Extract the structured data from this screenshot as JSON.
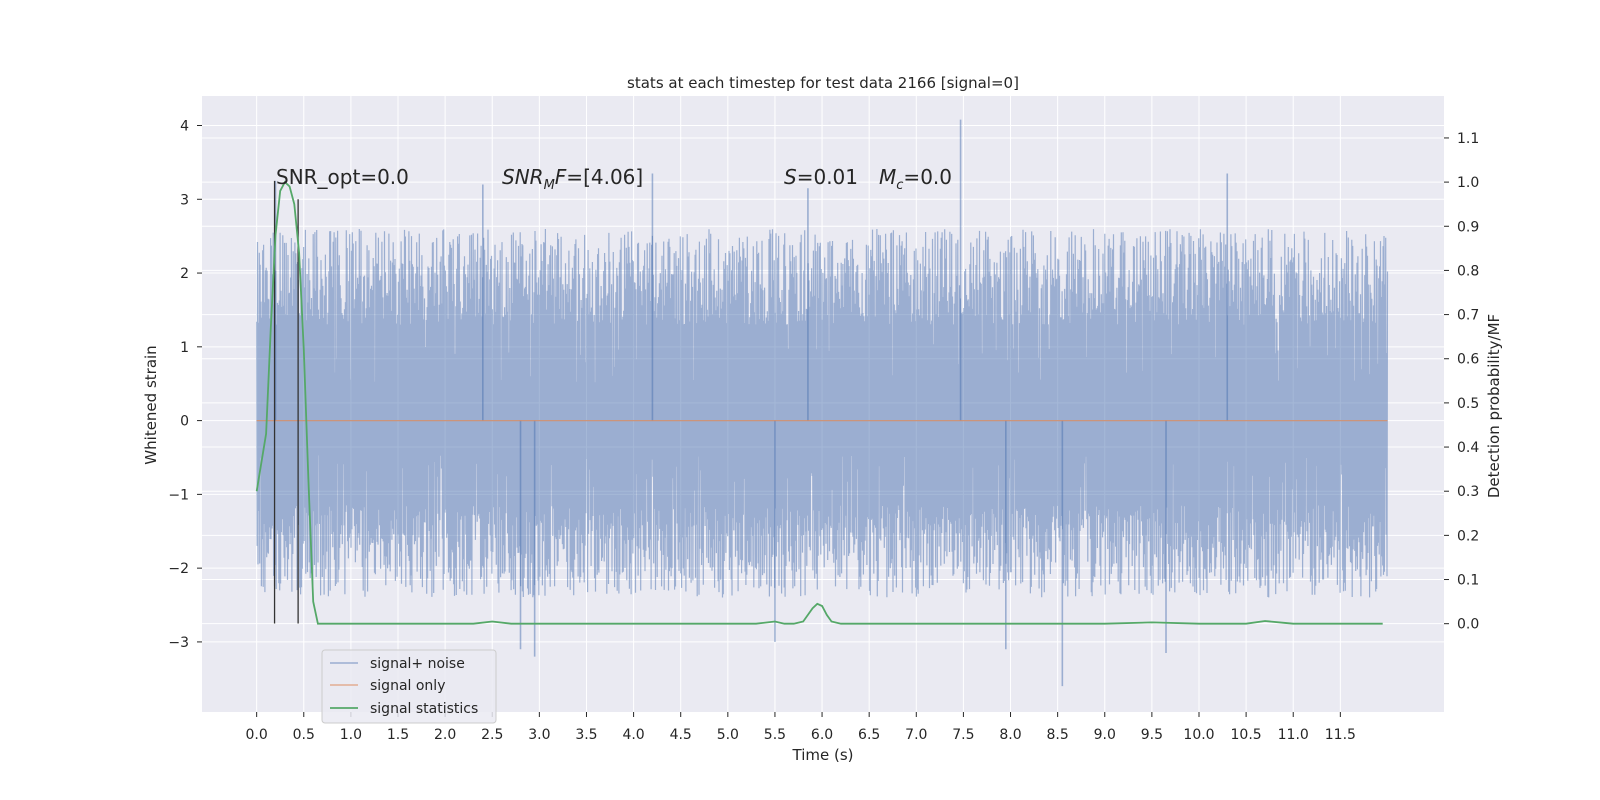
{
  "chart_data": {
    "type": "line",
    "title": "stats at each timestep for test data 2166 [signal=0]",
    "xlabel": "Time (s)",
    "ylabel": "Whitened strain",
    "ylabel_right": "Detection probability/MF",
    "xlim": [
      -0.58,
      12.6
    ],
    "ylim": [
      -3.95,
      4.4
    ],
    "ylim_right": [
      -0.2,
      1.195
    ],
    "x_ticks": [
      0.0,
      0.5,
      1.0,
      1.5,
      2.0,
      2.5,
      3.0,
      3.5,
      4.0,
      4.5,
      5.0,
      5.5,
      6.0,
      6.5,
      7.0,
      7.5,
      8.0,
      8.5,
      9.0,
      9.5,
      10.0,
      10.5,
      11.0,
      11.5
    ],
    "x_tick_labels": [
      "0.0",
      "0.5",
      "1.0",
      "1.5",
      "2.0",
      "2.5",
      "3.0",
      "3.5",
      "4.0",
      "4.5",
      "5.0",
      "5.5",
      "6.0",
      "6.5",
      "7.0",
      "7.5",
      "8.0",
      "8.5",
      "9.0",
      "9.5",
      "10.0",
      "10.5",
      "11.0",
      "11.5"
    ],
    "y_ticks": [
      -3,
      -2,
      -1,
      0,
      1,
      2,
      3,
      4
    ],
    "y_tick_labels": [
      "−3",
      "−2",
      "−1",
      "0",
      "1",
      "2",
      "3",
      "4"
    ],
    "y_ticks_right": [
      0.0,
      0.1,
      0.2,
      0.3,
      0.4,
      0.5,
      0.6,
      0.7,
      0.8,
      0.9,
      1.0,
      1.1
    ],
    "y_tick_labels_right": [
      "0.0",
      "0.1",
      "0.2",
      "0.3",
      "0.4",
      "0.5",
      "0.6",
      "0.7",
      "0.8",
      "0.9",
      "1.0",
      "1.1"
    ],
    "grid": true,
    "legend_position": "lower-left",
    "annotations": {
      "snr_opt": "SNR_opt=0.0",
      "snr_mf": "[4.06]",
      "s_value": "0.01",
      "mc_value": "0.0"
    },
    "series": [
      {
        "name": "signal+ noise",
        "color": "#4C72B0",
        "axis": "left",
        "x_range": [
          0.0,
          12.0
        ],
        "approx_envelope": [
          -2.4,
          2.6
        ],
        "peaks": [
          {
            "x": 0.2,
            "y": 3.25
          },
          {
            "x": 2.4,
            "y": 3.2
          },
          {
            "x": 4.2,
            "y": 3.35
          },
          {
            "x": 5.85,
            "y": 3.15
          },
          {
            "x": 7.47,
            "y": 4.08
          },
          {
            "x": 10.3,
            "y": 3.35
          },
          {
            "x": 2.8,
            "y": -3.1
          },
          {
            "x": 2.95,
            "y": -3.2
          },
          {
            "x": 5.5,
            "y": -3.0
          },
          {
            "x": 7.95,
            "y": -3.1
          },
          {
            "x": 8.55,
            "y": -3.6
          },
          {
            "x": 9.65,
            "y": -3.15
          }
        ]
      },
      {
        "name": "signal only",
        "color": "#DD8452",
        "axis": "left",
        "x": [
          0.0,
          12.0
        ],
        "y": [
          0.0,
          0.0
        ]
      },
      {
        "name": "signal statistics",
        "color": "#55A868",
        "axis": "right",
        "x": [
          0.0,
          0.1,
          0.15,
          0.2,
          0.25,
          0.3,
          0.35,
          0.4,
          0.45,
          0.5,
          0.55,
          0.6,
          0.65,
          0.7,
          0.8,
          1.0,
          2.0,
          2.3,
          2.5,
          2.7,
          3.0,
          4.0,
          5.0,
          5.3,
          5.5,
          5.6,
          5.7,
          5.8,
          5.9,
          5.95,
          6.0,
          6.05,
          6.1,
          6.2,
          6.4,
          7.0,
          8.0,
          9.0,
          9.5,
          10.0,
          10.5,
          10.7,
          10.9,
          11.0,
          11.5,
          11.95
        ],
        "y": [
          0.3,
          0.43,
          0.67,
          0.88,
          0.98,
          1.0,
          0.99,
          0.95,
          0.84,
          0.62,
          0.32,
          0.05,
          0.0,
          0.0,
          0.0,
          0.0,
          0.0,
          0.0,
          0.005,
          0.0,
          0.0,
          0.0,
          0.0,
          0.0,
          0.005,
          0.0,
          0.0,
          0.005,
          0.035,
          0.045,
          0.04,
          0.02,
          0.005,
          0.0,
          0.0,
          0.0,
          0.0,
          0.0,
          0.003,
          0.0,
          0.0,
          0.006,
          0.002,
          0.0,
          0.0,
          0.0
        ]
      }
    ],
    "vertical_markers": [
      {
        "x": 0.19,
        "y_bottom": -2.75,
        "y_top": 3.25,
        "color": "#333333"
      },
      {
        "x": 0.44,
        "y_bottom": -2.75,
        "y_top": 3.0,
        "color": "#333333"
      }
    ]
  }
}
